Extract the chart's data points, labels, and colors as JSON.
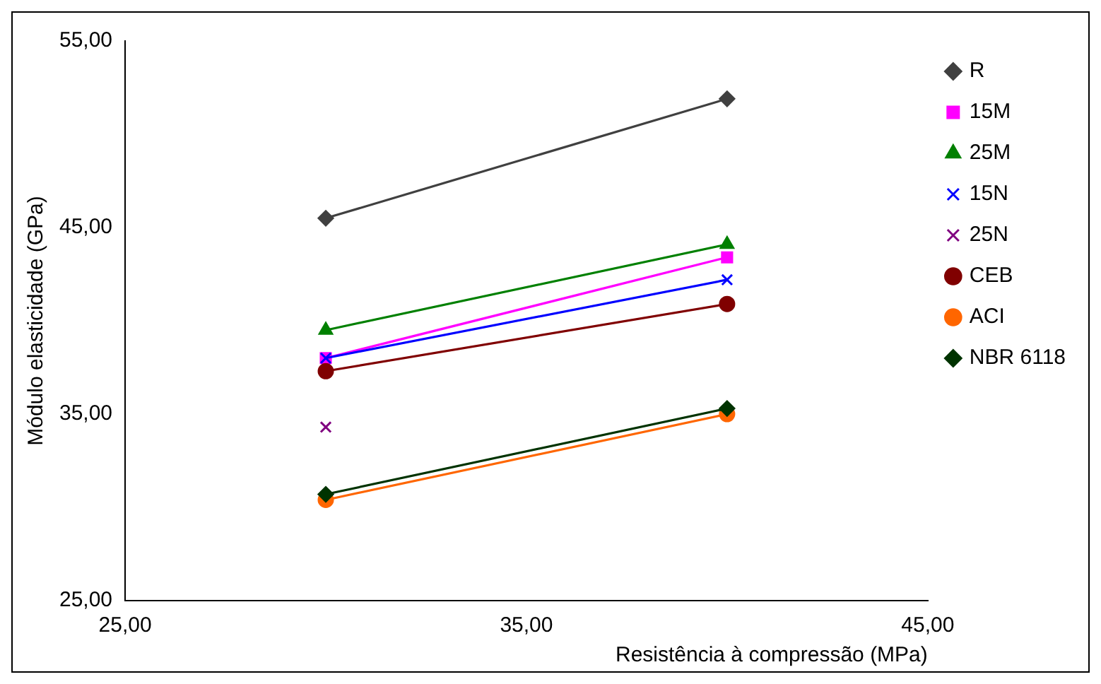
{
  "chart_data": {
    "type": "line",
    "xlabel": "Resistência à compressão (MPa)",
    "ylabel": "Módulo elasticidade (GPa)",
    "x": [
      30,
      40
    ],
    "xlim": [
      25,
      45
    ],
    "xticks": [
      {
        "value": 25,
        "label": "25,00"
      },
      {
        "value": 35,
        "label": "35,00"
      },
      {
        "value": 45,
        "label": "45,00"
      }
    ],
    "ylim": [
      25,
      55
    ],
    "yticks": [
      {
        "value": 25,
        "label": "25,00"
      },
      {
        "value": 35,
        "label": "35,00"
      },
      {
        "value": 45,
        "label": "45,00"
      },
      {
        "value": 55,
        "label": "55,00"
      }
    ],
    "grid": false,
    "legend": "right",
    "line_style": "solid",
    "series": [
      {
        "name": "R",
        "color": "#404040",
        "marker": "diamond",
        "values": [
          45.5,
          51.9
        ]
      },
      {
        "name": "15M",
        "color": "#ff00ff",
        "marker": "square",
        "values": [
          38.0,
          43.4
        ]
      },
      {
        "name": "25M",
        "color": "#008000",
        "marker": "triangle",
        "values": [
          39.5,
          44.1
        ]
      },
      {
        "name": "15N",
        "color": "#0000ff",
        "marker": "cross",
        "values": [
          38.0,
          42.2
        ]
      },
      {
        "name": "25N",
        "color": "#800080",
        "marker": "cross",
        "values": [
          34.3,
          null
        ]
      },
      {
        "name": "CEB",
        "color": "#800000",
        "marker": "circle",
        "values": [
          37.3,
          40.9
        ]
      },
      {
        "name": "ACI",
        "color": "#ff6600",
        "marker": "circle",
        "values": [
          30.4,
          35.0
        ]
      },
      {
        "name": "NBR 6118",
        "color": "#003300",
        "marker": "diamond",
        "values": [
          30.7,
          35.3
        ]
      }
    ]
  }
}
